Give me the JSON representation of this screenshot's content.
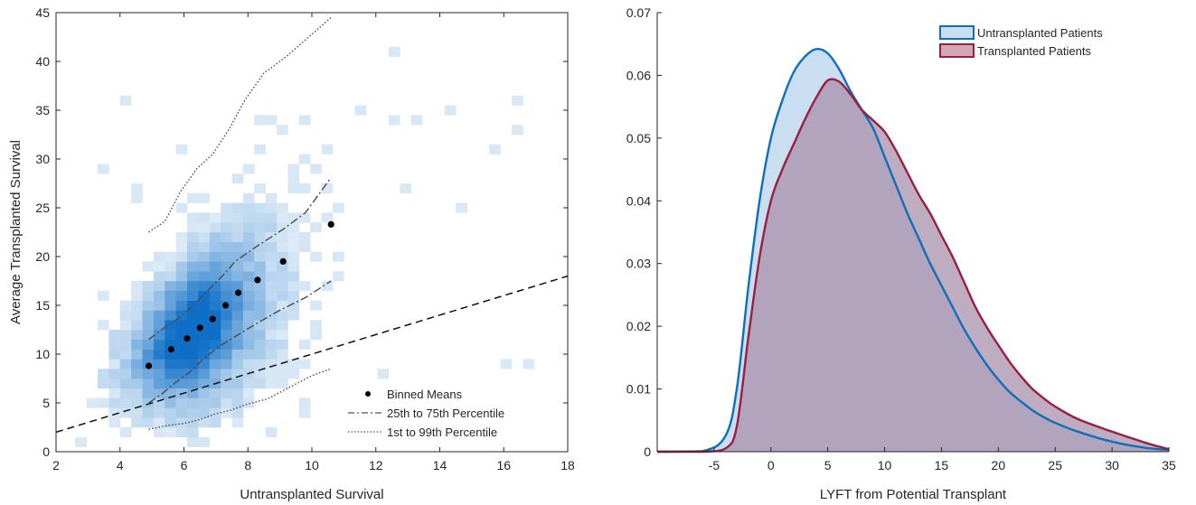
{
  "chart_data": [
    {
      "type": "heatmap",
      "xlabel": "Untransplanted Survival",
      "ylabel": "Average Transplanted Survival",
      "xlim": [
        2,
        18
      ],
      "ylim": [
        0,
        45
      ],
      "xticks": [
        2,
        4,
        6,
        8,
        10,
        12,
        14,
        16,
        18
      ],
      "yticks": [
        0,
        5,
        10,
        15,
        20,
        25,
        30,
        35,
        40,
        45
      ],
      "grid": false,
      "legend_position": "bottom-right",
      "colormap": [
        "#e3eef8",
        "#0f6fc6"
      ],
      "reference_line": {
        "style": "dashed",
        "points": [
          [
            2,
            2
          ],
          [
            18,
            18
          ]
        ]
      },
      "binned_means": {
        "name": "Binned Means",
        "x": [
          4.9,
          5.6,
          6.1,
          6.5,
          6.9,
          7.3,
          7.7,
          8.3,
          9.1,
          10.6
        ],
        "y": [
          8.8,
          10.5,
          11.6,
          12.7,
          13.6,
          15.0,
          16.3,
          17.6,
          19.5,
          23.3
        ]
      },
      "percentile_25_75": {
        "name": "25th to 75th Percentile",
        "x_upper": [
          4.9,
          5.3,
          5.8,
          6.3,
          6.7,
          7.2,
          7.6,
          8.3,
          9.1,
          9.8,
          10.6
        ],
        "upper": [
          11.5,
          12.5,
          13.6,
          15.0,
          16.4,
          18.0,
          19.5,
          21.1,
          22.8,
          24.5,
          28.1
        ],
        "x_lower": [
          4.9,
          5.3,
          5.7,
          6.2,
          6.6,
          7.1,
          7.6,
          8.2,
          9.0,
          9.8,
          10.6
        ],
        "lower": [
          5.0,
          5.9,
          7.0,
          8.2,
          9.5,
          10.8,
          11.8,
          13.0,
          14.5,
          15.8,
          17.5
        ]
      },
      "percentile_1_99": {
        "name": "1st to 99th Percentile",
        "x_upper": [
          4.9,
          5.4,
          5.9,
          6.4,
          6.9,
          7.4,
          7.9,
          8.5,
          9.2,
          9.9,
          10.6
        ],
        "upper": [
          22.5,
          23.6,
          26.7,
          29.0,
          30.5,
          33.0,
          36.0,
          38.8,
          40.5,
          42.5,
          44.5
        ],
        "x_lower": [
          4.9,
          5.5,
          6.0,
          6.5,
          7.0,
          7.5,
          8.0,
          8.6,
          9.3,
          10.0,
          10.6
        ],
        "lower": [
          2.3,
          2.7,
          2.9,
          3.3,
          3.9,
          4.3,
          4.9,
          5.4,
          6.6,
          7.8,
          8.5
        ]
      }
    },
    {
      "type": "area",
      "xlabel": "LYFT from Potential Transplant",
      "ylabel": "",
      "xlim": [
        -10,
        35
      ],
      "ylim": [
        0,
        0.07
      ],
      "xticks": [
        -5,
        0,
        5,
        10,
        15,
        20,
        25,
        30,
        35
      ],
      "yticks": [
        0,
        0.01,
        0.02,
        0.03,
        0.04,
        0.05,
        0.06,
        0.07
      ],
      "grid": false,
      "legend_position": "top-right",
      "x": [
        -10,
        -6,
        -4,
        -3,
        -2,
        -1,
        0,
        1,
        2,
        3,
        4,
        5,
        6,
        7,
        8,
        9,
        10,
        11,
        12,
        13,
        14,
        15,
        16,
        17,
        18,
        19,
        20,
        21,
        22,
        23,
        24,
        25,
        27,
        30,
        33,
        35
      ],
      "series": [
        {
          "name": "Untransplanted Patients",
          "line_color": "#0e6fba",
          "fill_color": "#c9def0",
          "values": [
            0,
            0.0001,
            0.0025,
            0.01,
            0.026,
            0.04,
            0.05,
            0.056,
            0.0605,
            0.063,
            0.0642,
            0.0635,
            0.061,
            0.0575,
            0.0545,
            0.0515,
            0.047,
            0.0425,
            0.038,
            0.034,
            0.03,
            0.0265,
            0.023,
            0.0195,
            0.0165,
            0.0138,
            0.0115,
            0.0095,
            0.008,
            0.0066,
            0.0055,
            0.0046,
            0.0032,
            0.0016,
            0.0006,
            0.0003
          ]
        },
        {
          "name": "Transplanted Patients",
          "line_color": "#9b1d3f",
          "fill_color": "#a890ab",
          "values": [
            0,
            0,
            0.0005,
            0.004,
            0.018,
            0.031,
            0.04,
            0.045,
            0.049,
            0.053,
            0.0565,
            0.0592,
            0.059,
            0.057,
            0.0545,
            0.0528,
            0.051,
            0.048,
            0.0445,
            0.041,
            0.038,
            0.0345,
            0.031,
            0.027,
            0.023,
            0.0198,
            0.017,
            0.0143,
            0.012,
            0.01,
            0.0085,
            0.0072,
            0.0052,
            0.0032,
            0.0014,
            0.0004
          ]
        }
      ]
    }
  ]
}
